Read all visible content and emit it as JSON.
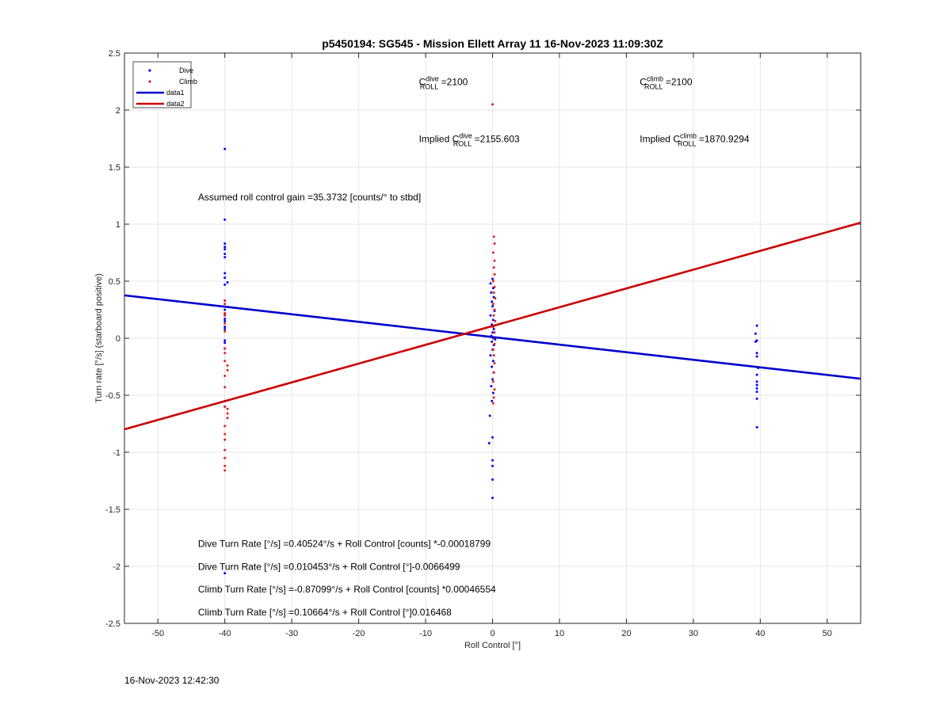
{
  "chart_data": {
    "type": "scatter",
    "title": "p5450194: SG545 - Mission Ellett Array 11 16-Nov-2023 11:09:30Z",
    "xlabel": "Roll Control [°]",
    "ylabel": "Turn rate [°/s] (starboard positive)",
    "xlim": [
      -55,
      55
    ],
    "ylim": [
      -2.5,
      2.5
    ],
    "xticks": [
      -50,
      -40,
      -30,
      -20,
      -10,
      0,
      10,
      20,
      30,
      40,
      50
    ],
    "yticks": [
      -2.5,
      -2,
      -1.5,
      -1,
      -0.5,
      0,
      0.5,
      1,
      1.5,
      2,
      2.5
    ],
    "grid": true,
    "legend_position": "top-left",
    "legend": [
      "Dive",
      "Climb",
      "data1",
      "data2"
    ],
    "series": [
      {
        "name": "Dive",
        "kind": "points",
        "color": "#0000ff",
        "points": [
          [
            -40,
            1.66
          ],
          [
            -40,
            1.04
          ],
          [
            -40,
            0.83
          ],
          [
            -40,
            0.8
          ],
          [
            -40,
            0.78
          ],
          [
            -40,
            0.74
          ],
          [
            -40,
            0.71
          ],
          [
            -40,
            0.57
          ],
          [
            -40,
            0.53
          ],
          [
            -39.6,
            0.49
          ],
          [
            -40,
            0.47
          ],
          [
            -40,
            0.33
          ],
          [
            -40,
            0.25
          ],
          [
            -40,
            0.21
          ],
          [
            -40,
            0.17
          ],
          [
            -40,
            0.15
          ],
          [
            -40,
            0.1
          ],
          [
            -40,
            0.08
          ],
          [
            -40,
            -0.02
          ],
          [
            -40,
            -0.04
          ],
          [
            -40,
            -0.09
          ],
          [
            -40,
            -0.55
          ],
          [
            -40,
            -0.6
          ],
          [
            -40,
            -2.06
          ],
          [
            0,
            0.52
          ],
          [
            -0.3,
            0.48
          ],
          [
            0.1,
            0.44
          ],
          [
            -0.2,
            0.4
          ],
          [
            0.2,
            0.36
          ],
          [
            -0.1,
            0.32
          ],
          [
            0,
            0.28
          ],
          [
            0.3,
            0.24
          ],
          [
            -0.3,
            0.2
          ],
          [
            0.1,
            0.16
          ],
          [
            -0.1,
            0.12
          ],
          [
            0.2,
            0.08
          ],
          [
            0,
            0.05
          ],
          [
            -0.2,
            0.02
          ],
          [
            0.1,
            0.0
          ],
          [
            0.4,
            -0.01
          ],
          [
            -0.1,
            -0.03
          ],
          [
            0.2,
            -0.06
          ],
          [
            0,
            -0.1
          ],
          [
            -0.3,
            -0.15
          ],
          [
            0.1,
            -0.2
          ],
          [
            -0.1,
            -0.25
          ],
          [
            0.2,
            -0.3
          ],
          [
            0,
            -0.36
          ],
          [
            -0.2,
            -0.42
          ],
          [
            0.1,
            -0.48
          ],
          [
            -0.1,
            -0.55
          ],
          [
            -0.4,
            -0.68
          ],
          [
            -0.5,
            -0.92
          ],
          [
            0,
            -0.87
          ],
          [
            0,
            -1.07
          ],
          [
            0,
            -1.12
          ],
          [
            0,
            -1.24
          ],
          [
            0,
            -1.4
          ],
          [
            39.5,
            0.11
          ],
          [
            39.3,
            0.04
          ],
          [
            39.5,
            -0.02
          ],
          [
            39.3,
            -0.03
          ],
          [
            39.5,
            -0.13
          ],
          [
            39.5,
            -0.16
          ],
          [
            39.7,
            -0.26
          ],
          [
            39.5,
            -0.32
          ],
          [
            39.5,
            -0.38
          ],
          [
            39.5,
            -0.41
          ],
          [
            39.5,
            -0.44
          ],
          [
            39.5,
            -0.47
          ],
          [
            39.5,
            -0.53
          ],
          [
            39.5,
            -0.78
          ]
        ]
      },
      {
        "name": "Climb",
        "kind": "points",
        "color": "#e02020",
        "points": [
          [
            -40,
            0.33
          ],
          [
            -40,
            0.3
          ],
          [
            -40,
            0.22
          ],
          [
            -40,
            0.2
          ],
          [
            -40,
            0.13
          ],
          [
            -40,
            0.06
          ],
          [
            -40,
            -0.09
          ],
          [
            -40,
            -0.13
          ],
          [
            -40,
            -0.2
          ],
          [
            -39.6,
            -0.24
          ],
          [
            -39.6,
            -0.28
          ],
          [
            -40,
            -0.33
          ],
          [
            -40,
            -0.43
          ],
          [
            -40,
            -0.6
          ],
          [
            -39.6,
            -0.62
          ],
          [
            -39.6,
            -0.66
          ],
          [
            -39.6,
            -0.7
          ],
          [
            -40,
            -0.77
          ],
          [
            -40,
            -0.84
          ],
          [
            -40,
            -0.89
          ],
          [
            -40,
            -0.98
          ],
          [
            -40,
            -1.05
          ],
          [
            -40,
            -1.12
          ],
          [
            -40,
            -1.16
          ],
          [
            0,
            2.05
          ],
          [
            0.2,
            0.89
          ],
          [
            0.3,
            0.83
          ],
          [
            0.1,
            0.75
          ],
          [
            0.3,
            0.68
          ],
          [
            0.2,
            0.62
          ],
          [
            0.3,
            0.56
          ],
          [
            0.1,
            0.5
          ],
          [
            0.3,
            0.45
          ],
          [
            0.2,
            0.4
          ],
          [
            0.4,
            0.35
          ],
          [
            0.1,
            0.3
          ],
          [
            0.3,
            0.25
          ],
          [
            0.2,
            0.2
          ],
          [
            0.4,
            0.15
          ],
          [
            0.1,
            0.1
          ],
          [
            0.3,
            0.05
          ],
          [
            0.2,
            0.0
          ],
          [
            0.3,
            -0.05
          ],
          [
            0.1,
            -0.1
          ],
          [
            0.2,
            -0.15
          ],
          [
            0.3,
            -0.22
          ],
          [
            0.2,
            -0.3
          ],
          [
            0.1,
            -0.38
          ],
          [
            0.3,
            -0.45
          ],
          [
            0.2,
            -0.52
          ],
          [
            0.1,
            -0.57
          ]
        ]
      },
      {
        "name": "data1",
        "kind": "line",
        "color": "#0000cc",
        "points": [
          [
            -55,
            0.376
          ],
          [
            55,
            -0.355
          ]
        ]
      },
      {
        "name": "data2",
        "kind": "line",
        "color": "#cc0000",
        "points": [
          [
            -55,
            -0.799
          ],
          [
            55,
            1.013
          ]
        ]
      }
    ],
    "annotations": [
      {
        "id": "c-dive",
        "x": -11,
        "y": 2.22,
        "segments": [
          [
            "C",
            ""
          ],
          [
            "dive",
            "sup"
          ],
          [
            "ROLL",
            "sub"
          ],
          [
            " =2100",
            ""
          ]
        ]
      },
      {
        "id": "c-climb",
        "x": 22,
        "y": 2.22,
        "segments": [
          [
            "C",
            ""
          ],
          [
            "climb",
            "sup"
          ],
          [
            "ROLL",
            "sub"
          ],
          [
            " =2100",
            ""
          ]
        ]
      },
      {
        "id": "implied-dive",
        "x": -11,
        "y": 1.72,
        "segments": [
          [
            "Implied C",
            ""
          ],
          [
            "dive",
            "sup"
          ],
          [
            "ROLL",
            "sub"
          ],
          [
            " =2155.603",
            ""
          ]
        ]
      },
      {
        "id": "implied-climb",
        "x": 22,
        "y": 1.72,
        "segments": [
          [
            "Implied C",
            ""
          ],
          [
            "climb",
            "sup"
          ],
          [
            "ROLL",
            "sub"
          ],
          [
            " =1870.9294",
            ""
          ]
        ]
      },
      {
        "id": "gain",
        "x": -44,
        "y": 1.21,
        "segments": [
          [
            "Assumed roll control gain =35.3732 [counts/° to stbd]",
            ""
          ]
        ]
      },
      {
        "id": "eq1",
        "x": -44,
        "y": -1.83,
        "segments": [
          [
            "Dive Turn Rate [°/s] =0.40524°/s + Roll Control [counts] *-0.00018799",
            ""
          ]
        ]
      },
      {
        "id": "eq2",
        "x": -44,
        "y": -2.03,
        "segments": [
          [
            "Dive Turn Rate [°/s] =0.010453°/s + Roll Control [°]-0.0066499",
            ""
          ]
        ]
      },
      {
        "id": "eq3",
        "x": -44,
        "y": -2.23,
        "segments": [
          [
            "Climb Turn Rate [°/s] =-0.87099°/s + Roll Control [counts] *0.00046554",
            ""
          ]
        ]
      },
      {
        "id": "eq4",
        "x": -44,
        "y": -2.43,
        "segments": [
          [
            "Climb Turn Rate [°/s] =0.10664°/s + Roll Control [°]0.016468",
            ""
          ]
        ]
      }
    ]
  },
  "footer": {
    "timestamp": "16-Nov-2023 12:42:30"
  }
}
